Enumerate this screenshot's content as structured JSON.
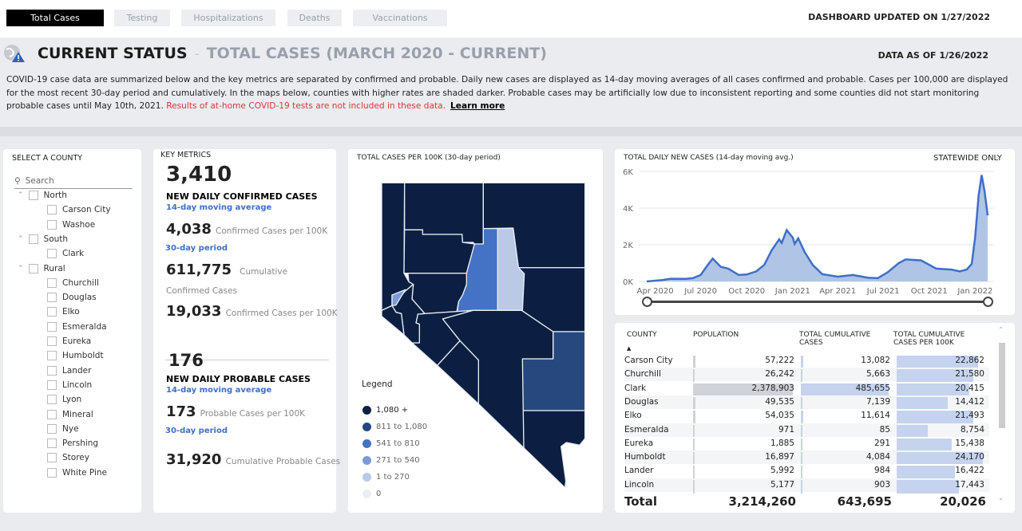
{
  "tabs": [
    {
      "label": "Total Cases",
      "active": true
    },
    {
      "label": "Testing"
    },
    {
      "label": "Hospitalizations"
    },
    {
      "label": "Deaths"
    },
    {
      "label": "Vaccinations"
    }
  ],
  "dashboard_updated": "DASHBOARD UPDATED ON 1/27/2022",
  "header": {
    "title": "CURRENT STATUS",
    "separator": "-",
    "subtitle": "TOTAL CASES (MARCH 2020 - CURRENT)",
    "data_as_of": "DATA AS OF 1/26/2022",
    "description": "COVID-19 case data are summarized below and the key metrics are separated by confirmed and probable. Daily new cases are displayed as 14-day moving averages of all cases confirmed and probable. Cases per 100,000 are displayed for the most recent 30-day period and cumulatively. In the maps below, counties with higher rates are shaded darker. Probable cases may be artificially low due to inconsistent reporting and some counties did not start monitoring probable cases until May 10th, 2021.",
    "warning": "Results of at-home COVID-19 tests are not included in these data.",
    "learn_more": "Learn more"
  },
  "county_filter": {
    "title": "SELECT A COUNTY",
    "search_placeholder": "Search",
    "groups": [
      {
        "name": "North",
        "counties": [
          "Carson City",
          "Washoe"
        ]
      },
      {
        "name": "South",
        "counties": [
          "Clark"
        ]
      },
      {
        "name": "Rural",
        "counties": [
          "Churchill",
          "Douglas",
          "Elko",
          "Esmeralda",
          "Eureka",
          "Humboldt",
          "Lander",
          "Lincoln",
          "Lyon",
          "Mineral",
          "Nye",
          "Pershing",
          "Storey",
          "White Pine"
        ]
      }
    ]
  },
  "key_metrics": {
    "title": "KEY METRICS",
    "confirmed": {
      "daily": "3,410",
      "daily_label": "NEW DAILY CONFIRMED CASES",
      "daily_note": "14-day moving average",
      "per100k_30": "4,038",
      "per100k_30_label": "Confirmed Cases per 100K",
      "period_note": "30-day period",
      "cumulative": "611,775",
      "cumulative_label": "Cumulative Confirmed Cases",
      "cum_per100k": "19,033",
      "cum_per100k_label": "Confirmed Cases per 100K"
    },
    "probable": {
      "daily": "176",
      "daily_label": "NEW DAILY PROBABLE CASES",
      "daily_note": "14-day moving average",
      "per100k_30": "173",
      "per100k_30_label": "Probable Cases per 100K",
      "period_note": "30-day period",
      "cumulative": "31,920",
      "cumulative_label": "Cumulative Probable Cases"
    }
  },
  "map": {
    "title": "TOTAL CASES PER 100K (30-day period)",
    "legend_title": "Legend",
    "legend": [
      {
        "label": "1,080 +",
        "color": "#0c1f42"
      },
      {
        "label": "811 to 1,080",
        "color": "#26487f"
      },
      {
        "label": "541 to 810",
        "color": "#4472c4"
      },
      {
        "label": "271 to 540",
        "color": "#7b9bd6"
      },
      {
        "label": "1 to 270",
        "color": "#b9c9e6"
      },
      {
        "label": "0",
        "color": "#eceef3"
      }
    ]
  },
  "chart_data": {
    "type": "area",
    "title": "TOTAL DAILY NEW CASES (14-day moving avg.)",
    "note": "STATEWIDE ONLY",
    "ylim": [
      0,
      6000
    ],
    "yticks": [
      "0K",
      "2K",
      "4K",
      "6K"
    ],
    "xticks": [
      "Apr 2020",
      "Jul 2020",
      "Oct 2020",
      "Jan 2021",
      "Apr 2021",
      "Jul 2021",
      "Oct 2021",
      "Jan 2022"
    ],
    "grid": true,
    "color": "#3f6fc7",
    "x": [
      "2020-03-15",
      "2020-04-15",
      "2020-05-01",
      "2020-06-01",
      "2020-06-15",
      "2020-07-01",
      "2020-07-15",
      "2020-07-25",
      "2020-08-10",
      "2020-08-25",
      "2020-09-15",
      "2020-10-01",
      "2020-10-20",
      "2020-11-05",
      "2020-11-20",
      "2020-12-05",
      "2020-12-10",
      "2020-12-20",
      "2021-01-01",
      "2021-01-05",
      "2021-01-12",
      "2021-01-25",
      "2021-02-10",
      "2021-03-01",
      "2021-04-01",
      "2021-05-01",
      "2021-06-01",
      "2021-06-20",
      "2021-07-10",
      "2021-08-01",
      "2021-08-15",
      "2021-09-15",
      "2021-10-15",
      "2021-11-15",
      "2021-12-01",
      "2021-12-15",
      "2021-12-25",
      "2022-01-01",
      "2022-01-08",
      "2022-01-14",
      "2022-01-20",
      "2022-01-26"
    ],
    "y": [
      0,
      80,
      150,
      140,
      180,
      350,
      900,
      1250,
      800,
      700,
      350,
      380,
      550,
      900,
      1700,
      2300,
      2100,
      2800,
      2400,
      2050,
      2350,
      1600,
      900,
      400,
      260,
      350,
      200,
      180,
      500,
      1000,
      1200,
      1150,
      700,
      650,
      550,
      650,
      950,
      2400,
      4700,
      5800,
      4900,
      3600
    ]
  },
  "table": {
    "headers": [
      "COUNTY",
      "POPULATION",
      "TOTAL CUMULATIVE CASES",
      "TOTAL CUMULATIVE CASES PER 100K"
    ],
    "rows": [
      [
        "Carson City",
        "57,222",
        "13,082",
        "22,862"
      ],
      [
        "Churchill",
        "26,242",
        "5,663",
        "21,580"
      ],
      [
        "Clark",
        "2,378,903",
        "485,655",
        "20,415"
      ],
      [
        "Douglas",
        "49,535",
        "7,139",
        "14,412"
      ],
      [
        "Elko",
        "54,035",
        "11,614",
        "21,493"
      ],
      [
        "Esmeralda",
        "971",
        "85",
        "8,754"
      ],
      [
        "Eureka",
        "1,885",
        "291",
        "15,438"
      ],
      [
        "Humboldt",
        "16,897",
        "4,084",
        "24,170"
      ],
      [
        "Lander",
        "5,992",
        "984",
        "16,422"
      ],
      [
        "Lincoln",
        "5,177",
        "903",
        "17,443"
      ]
    ],
    "total": [
      "Total",
      "3,214,260",
      "643,695",
      "20,026"
    ]
  }
}
